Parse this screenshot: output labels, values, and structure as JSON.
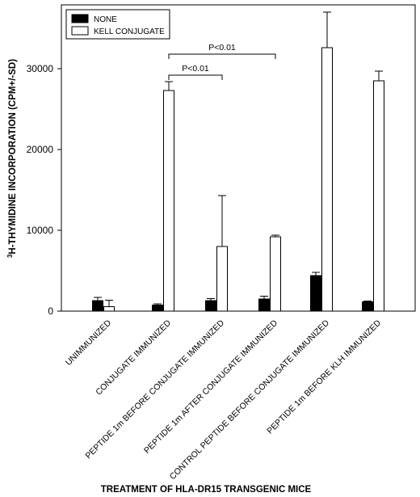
{
  "chart_data": {
    "type": "bar",
    "xlabel": "TREATMENT OF HLA-DR15 TRANSGENIC MICE",
    "ylabel_superscript": "3",
    "ylabel": "H-THYMIDINE INCORPORATION (CPM+/-SD)",
    "ylim": [
      0,
      38000
    ],
    "yticks": [
      0,
      10000,
      20000,
      30000
    ],
    "categories": [
      "UNIMMUNIZED",
      "CONJUGATE IMMUNIZED",
      "PEPTIDE 1m BEFORE CONJUGATE IMMUNIZED",
      "PEPTIDE 1m AFTER CONJUGATE IMMUNIZED",
      "CONTROL PEPTIDE BEFORE CONJUGATE IMMUNIZED",
      "PEPTIDE 1m BEFORE KLH IMMUNIZED"
    ],
    "series": [
      {
        "name": "NONE",
        "color": "#000000",
        "values": [
          1300,
          750,
          1300,
          1500,
          4400,
          1150
        ],
        "sd": [
          400,
          150,
          250,
          350,
          400,
          100
        ]
      },
      {
        "name": "KELL CONJUGATE",
        "color": "#ffffff",
        "values": [
          550,
          27300,
          8000,
          9200,
          32600,
          28500
        ],
        "sd": [
          800,
          1100,
          6300,
          200,
          4400,
          1200
        ]
      }
    ],
    "annotations": [
      {
        "text": "P<0.01",
        "from_category": 1,
        "to_category": 2,
        "level": 29200
      },
      {
        "text": "P<0.01",
        "from_category": 1,
        "to_category": 3,
        "level": 31800
      }
    ],
    "legend_position": "top-left",
    "grid": false
  }
}
